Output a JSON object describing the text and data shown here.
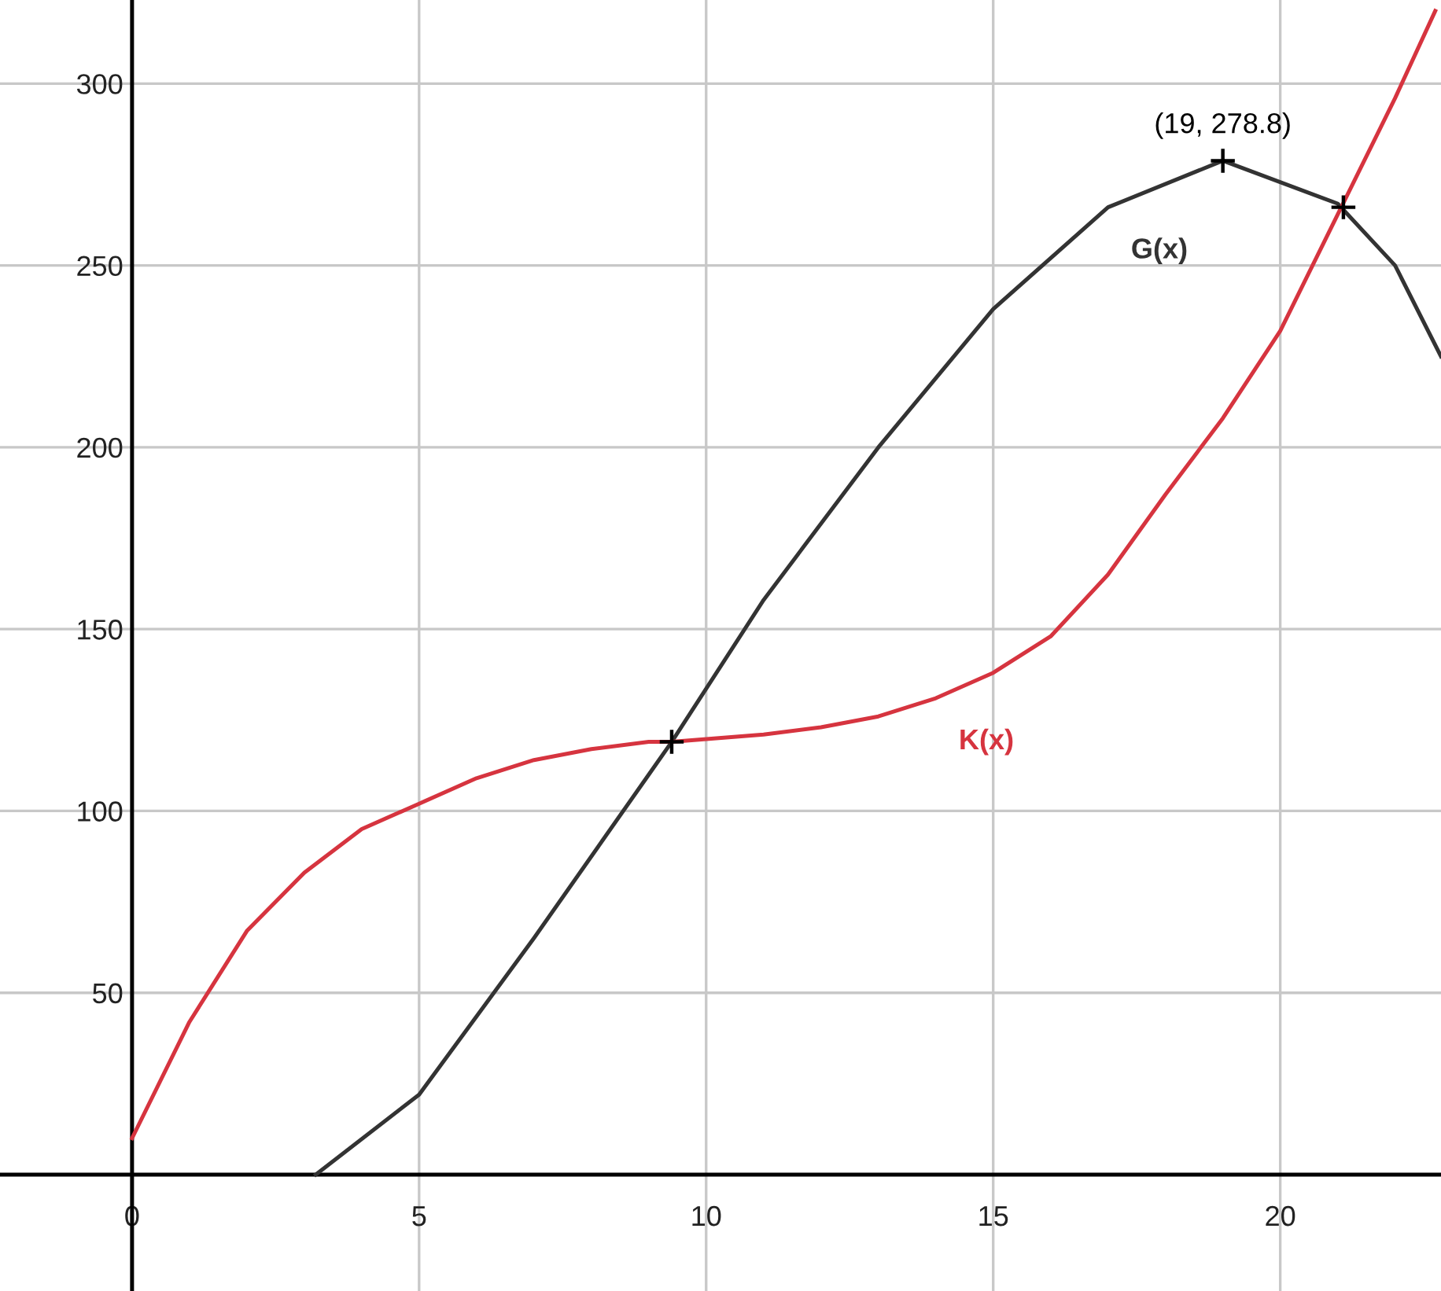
{
  "chart_data": {
    "type": "line",
    "xlim": [
      -2.3,
      22.8
    ],
    "ylim": [
      -32,
      323
    ],
    "xticks": [
      0,
      5,
      10,
      15,
      20
    ],
    "yticks": [
      50,
      100,
      150,
      200,
      250,
      300
    ],
    "grid": true,
    "marker": "none",
    "line_style": "solid",
    "annotations": [
      {
        "text": "(19, 278.8)",
        "x": 19,
        "y": 278.8
      }
    ],
    "series": [
      {
        "name": "G(x)",
        "color": "#333333",
        "x": [
          3.2,
          5,
          7,
          9,
          9.4,
          11,
          13,
          15,
          17,
          19,
          21,
          22,
          22.8
        ],
        "values": [
          0,
          22,
          65,
          110,
          119,
          158,
          200,
          238,
          266,
          278.8,
          267,
          250,
          225
        ]
      },
      {
        "name": "K(x)",
        "color": "#d6343f",
        "x": [
          0,
          1,
          2,
          3,
          4,
          5,
          6,
          7,
          8,
          9,
          9.4,
          11,
          12,
          13,
          14,
          15,
          16,
          17,
          18,
          19,
          20,
          21,
          22,
          22.7
        ],
        "values": [
          10,
          42,
          67,
          83,
          95,
          102,
          109,
          114,
          117,
          119,
          119,
          121,
          123,
          126,
          131,
          138,
          148,
          165,
          187,
          208,
          232,
          264,
          296,
          320
        ]
      },
      {
        "type": "scatter",
        "marker": "cross",
        "color": "#000000",
        "x": [
          9.4,
          19,
          21.1
        ],
        "values": [
          119,
          278.8,
          266
        ]
      }
    ]
  }
}
